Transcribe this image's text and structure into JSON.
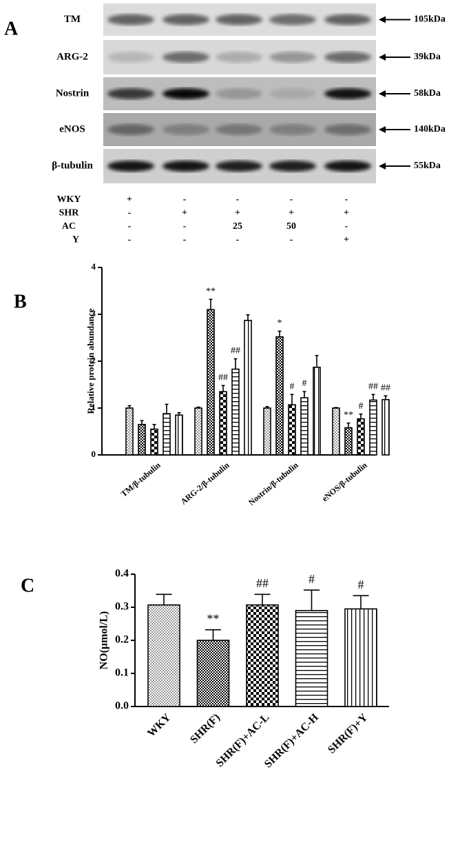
{
  "panel_a": {
    "label": "A",
    "blots": [
      {
        "name": "TM",
        "size": "105kDa"
      },
      {
        "name": "ARG-2",
        "size": "39kDa"
      },
      {
        "name": "Nostrin",
        "size": "58kDa"
      },
      {
        "name": "eNOS",
        "size": "140kDa"
      },
      {
        "name": "β-tubulin",
        "size": "55kDa"
      }
    ],
    "treatments": [
      {
        "name": "WKY",
        "marks": [
          "+",
          "-",
          "-",
          "-",
          "-"
        ]
      },
      {
        "name": "SHR",
        "marks": [
          "-",
          "+",
          "+",
          "+",
          "+"
        ]
      },
      {
        "name": "AC",
        "marks": [
          "-",
          "-",
          "25",
          "50",
          "-"
        ]
      },
      {
        "name": "Y",
        "marks": [
          "-",
          "-",
          "-",
          "-",
          "+"
        ]
      }
    ]
  },
  "chart_data": [
    {
      "type": "grouped-bar",
      "panel": "B",
      "ylabel": "Relative protein abundance",
      "categories": [
        "TM/β-tubulin",
        "ARG-2/β-tubulin",
        "Nostrin/β-tubulin",
        "eNOS/β-tubulin"
      ],
      "ylim": [
        0,
        4
      ],
      "yticks": [
        0,
        1,
        2,
        3,
        4
      ],
      "color": "#000000",
      "series": [
        {
          "pattern": "dots",
          "values": [
            1.0,
            1.0,
            1.0,
            1.0
          ],
          "errors": [
            0.05,
            0.02,
            0.03,
            0.01
          ],
          "labels": [
            null,
            null,
            null,
            null
          ]
        },
        {
          "pattern": "fine-check",
          "values": [
            0.65,
            3.1,
            2.52,
            0.58
          ],
          "errors": [
            0.08,
            0.22,
            0.12,
            0.1
          ],
          "labels": [
            null,
            "**",
            "*",
            "**"
          ]
        },
        {
          "pattern": "check",
          "values": [
            0.55,
            1.35,
            1.07,
            0.77
          ],
          "errors": [
            0.1,
            0.13,
            0.22,
            0.1
          ],
          "labels": [
            null,
            "##",
            "#",
            "#"
          ]
        },
        {
          "pattern": "hlines",
          "values": [
            0.88,
            1.83,
            1.22,
            1.17
          ],
          "errors": [
            0.2,
            0.22,
            0.13,
            0.12
          ],
          "labels": [
            null,
            "##",
            "#",
            "##"
          ]
        },
        {
          "pattern": "vlines",
          "values": [
            0.85,
            2.87,
            1.87,
            1.18
          ],
          "errors": [
            0.05,
            0.12,
            0.25,
            0.08
          ],
          "labels": [
            null,
            null,
            null,
            "##"
          ]
        }
      ]
    },
    {
      "type": "bar",
      "panel": "C",
      "ylabel": "NO(μmol/L)",
      "categories": [
        "WKY",
        "SHR(F)",
        "SHR(F)+AC-L",
        "SHR(F)+AC-H",
        "SHR(F)+Y"
      ],
      "values": [
        0.307,
        0.2,
        0.307,
        0.29,
        0.295
      ],
      "errors": [
        0.032,
        0.032,
        0.032,
        0.062,
        0.04
      ],
      "labels": [
        null,
        "**",
        "##",
        "#",
        "#"
      ],
      "patterns": [
        "dots",
        "fine-check",
        "check",
        "hlines",
        "vlines"
      ],
      "color": "#000000",
      "ylim": [
        0,
        0.4
      ],
      "yticks": [
        {
          "value": 0,
          "label": "0.0"
        },
        0.1,
        0.2,
        0.3,
        0.4
      ]
    }
  ]
}
